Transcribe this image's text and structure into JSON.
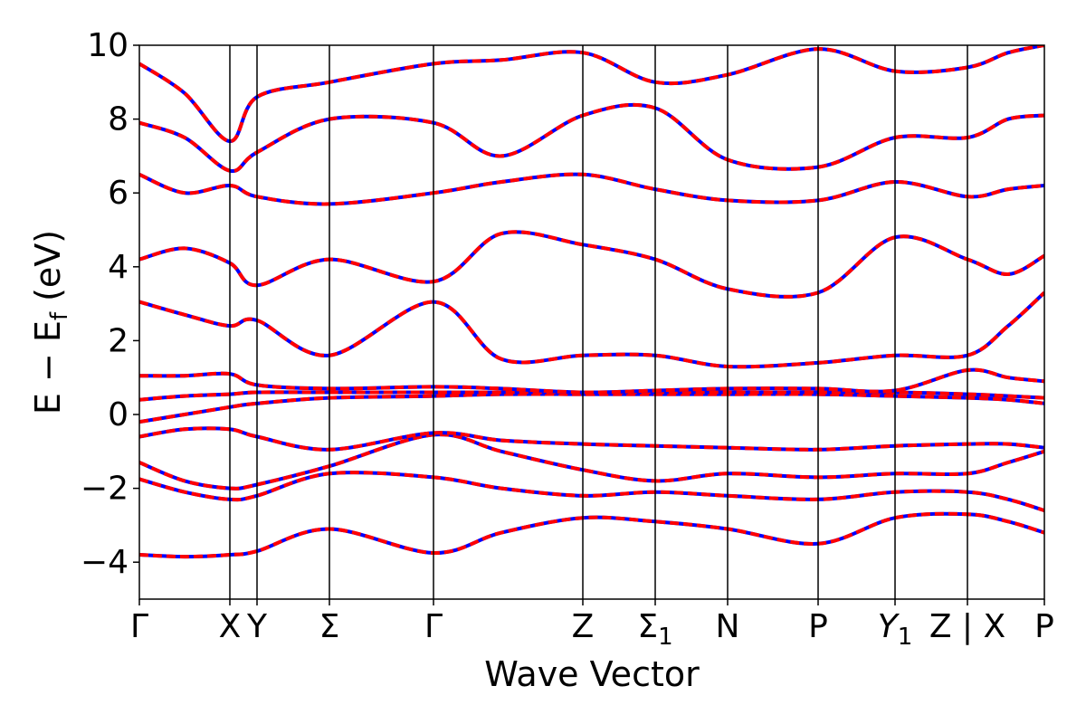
{
  "chart_data": {
    "type": "line",
    "title": "",
    "xlabel": "Wave Vector",
    "ylabel": "E − E_f (eV)",
    "ylabel_parts": {
      "main": "E − E",
      "sub": "f",
      "unit": " (eV)"
    },
    "ylim": [
      -5,
      10
    ],
    "yticks": [
      -4,
      -2,
      0,
      2,
      4,
      6,
      8,
      10
    ],
    "ytick_labels": [
      "−4",
      "−2",
      "0",
      "2",
      "4",
      "6",
      "8",
      "10"
    ],
    "xlim": [
      0,
      10
    ],
    "kpoints": [
      {
        "pos": 0.0,
        "label": "Γ"
      },
      {
        "pos": 1.0,
        "label": "X"
      },
      {
        "pos": 1.3,
        "label": "Y"
      },
      {
        "pos": 2.1,
        "label": "Σ"
      },
      {
        "pos": 3.25,
        "label": "Γ"
      },
      {
        "pos": 4.9,
        "label": "Z"
      },
      {
        "pos": 5.7,
        "label": "Σ",
        "sub": "1"
      },
      {
        "pos": 6.5,
        "label": "N"
      },
      {
        "pos": 7.5,
        "label": "P"
      },
      {
        "pos": 8.35,
        "label": "Y",
        "sub": "1",
        "italic": true
      },
      {
        "pos": 9.15,
        "label": "Z | X"
      },
      {
        "pos": 10.0,
        "label": "P"
      }
    ],
    "grid": false,
    "legend": "none",
    "series_styles": [
      {
        "color": "#0000ff",
        "style": "solid"
      },
      {
        "color": "#ff0000",
        "style": "dashed"
      }
    ],
    "band_segments": [
      [
        0.0,
        1.0
      ],
      [
        1.0,
        1.3
      ],
      [
        1.3,
        2.1
      ],
      [
        2.1,
        3.25
      ],
      [
        3.25,
        4.9
      ],
      [
        4.9,
        5.7
      ],
      [
        5.7,
        6.5
      ],
      [
        6.5,
        7.5
      ],
      [
        7.5,
        8.35
      ],
      [
        8.35,
        9.15
      ],
      [
        9.15,
        10.0
      ]
    ],
    "bands": [
      {
        "k": [
          0,
          0.5,
          1.0,
          1.3,
          2.1,
          3.25,
          4.0,
          4.9,
          5.7,
          6.5,
          7.5,
          8.35,
          9.15,
          9.6,
          10.0
        ],
        "E": [
          -3.8,
          -3.85,
          -3.8,
          -3.7,
          -3.1,
          -3.75,
          -3.2,
          -2.8,
          -2.9,
          -3.1,
          -3.5,
          -2.8,
          -2.7,
          -2.9,
          -3.2
        ]
      },
      {
        "k": [
          0,
          0.5,
          1.0,
          1.3,
          2.1,
          3.25,
          4.0,
          4.9,
          5.7,
          6.5,
          7.5,
          8.35,
          9.15,
          9.6,
          10.0
        ],
        "E": [
          -1.75,
          -2.1,
          -2.3,
          -2.2,
          -1.6,
          -1.7,
          -2.0,
          -2.2,
          -2.1,
          -2.2,
          -2.3,
          -2.1,
          -2.1,
          -2.3,
          -2.6
        ]
      },
      {
        "k": [
          0,
          0.5,
          1.0,
          1.3,
          2.1,
          3.25,
          4.0,
          4.9,
          5.7,
          6.5,
          7.5,
          8.35,
          9.15,
          9.6,
          10.0
        ],
        "E": [
          -1.3,
          -1.8,
          -2.0,
          -1.9,
          -1.4,
          -0.55,
          -1.0,
          -1.5,
          -1.8,
          -1.6,
          -1.7,
          -1.6,
          -1.6,
          -1.3,
          -1.0
        ]
      },
      {
        "k": [
          0,
          0.5,
          1.0,
          1.3,
          2.1,
          3.25,
          4.0,
          4.9,
          5.7,
          6.5,
          7.5,
          8.35,
          9.15,
          9.6,
          10.0
        ],
        "E": [
          -0.6,
          -0.4,
          -0.4,
          -0.6,
          -0.95,
          -0.5,
          -0.7,
          -0.8,
          -0.85,
          -0.9,
          -0.95,
          -0.85,
          -0.8,
          -0.8,
          -0.9
        ]
      },
      {
        "k": [
          0,
          0.5,
          1.0,
          1.3,
          2.1,
          3.25,
          4.0,
          4.9,
          5.7,
          6.5,
          7.5,
          8.35,
          9.15,
          9.6,
          10.0
        ],
        "E": [
          -0.2,
          0.0,
          0.2,
          0.3,
          0.45,
          0.5,
          0.55,
          0.55,
          0.55,
          0.55,
          0.55,
          0.5,
          0.45,
          0.4,
          0.3
        ]
      },
      {
        "k": [
          0,
          0.5,
          1.0,
          1.3,
          2.1,
          3.25,
          4.0,
          4.9,
          5.7,
          6.5,
          7.5,
          8.35,
          9.15,
          9.6,
          10.0
        ],
        "E": [
          0.4,
          0.5,
          0.55,
          0.6,
          0.6,
          0.6,
          0.6,
          0.6,
          0.6,
          0.6,
          0.6,
          0.6,
          0.55,
          0.5,
          0.45
        ]
      },
      {
        "k": [
          0,
          0.5,
          1.0,
          1.3,
          2.1,
          3.25,
          4.0,
          4.9,
          5.7,
          6.5,
          7.5,
          8.35,
          9.15,
          9.6,
          10.0
        ],
        "E": [
          1.05,
          1.05,
          1.1,
          0.8,
          0.7,
          0.75,
          0.7,
          0.6,
          0.65,
          0.7,
          0.7,
          0.65,
          1.2,
          1.0,
          0.9
        ]
      },
      {
        "k": [
          0,
          0.5,
          1.0,
          1.3,
          2.1,
          3.25,
          4.0,
          4.9,
          5.7,
          6.5,
          7.5,
          8.35,
          9.15,
          9.6,
          10.0
        ],
        "E": [
          3.05,
          2.7,
          2.4,
          2.55,
          1.6,
          3.05,
          1.5,
          1.6,
          1.6,
          1.3,
          1.4,
          1.6,
          1.6,
          2.4,
          3.3
        ]
      },
      {
        "k": [
          0,
          0.5,
          1.0,
          1.3,
          2.1,
          3.25,
          4.0,
          4.9,
          5.7,
          6.5,
          7.5,
          8.35,
          9.15,
          9.6,
          10.0
        ],
        "E": [
          4.2,
          4.5,
          4.1,
          3.5,
          4.2,
          3.6,
          4.9,
          4.6,
          4.2,
          3.4,
          3.3,
          4.8,
          4.2,
          3.8,
          4.3
        ]
      },
      {
        "k": [
          0,
          0.5,
          1.0,
          1.3,
          2.1,
          3.25,
          4.0,
          4.9,
          5.7,
          6.5,
          7.5,
          8.35,
          9.15,
          9.6,
          10.0
        ],
        "E": [
          6.5,
          6.0,
          6.2,
          5.9,
          5.7,
          6.0,
          6.3,
          6.5,
          6.1,
          5.8,
          5.8,
          6.3,
          5.9,
          6.1,
          6.2
        ]
      },
      {
        "k": [
          0,
          0.5,
          1.0,
          1.3,
          2.1,
          3.25,
          4.0,
          4.9,
          5.7,
          6.5,
          7.5,
          8.35,
          9.15,
          9.6,
          10.0
        ],
        "E": [
          7.9,
          7.5,
          6.6,
          7.1,
          8.0,
          7.9,
          7.0,
          8.1,
          8.3,
          6.9,
          6.7,
          7.5,
          7.5,
          8.0,
          8.1
        ]
      },
      {
        "k": [
          0,
          0.5,
          1.0,
          1.3,
          2.1,
          3.25,
          4.0,
          4.9,
          5.7,
          6.5,
          7.5,
          8.35,
          9.15,
          9.6,
          10.0
        ],
        "E": [
          9.5,
          8.7,
          7.4,
          8.6,
          9.0,
          9.5,
          9.6,
          9.8,
          9.0,
          9.2,
          9.9,
          9.3,
          9.4,
          9.8,
          10.0
        ]
      }
    ]
  }
}
